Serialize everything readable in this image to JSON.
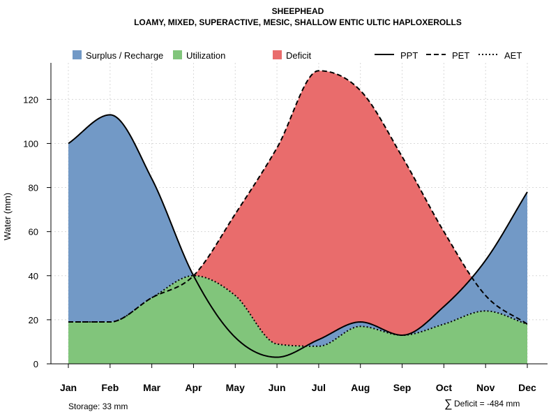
{
  "chart_data": {
    "type": "area",
    "title": "SHEEPHEAD",
    "subtitle": "LOAMY, MIXED, SUPERACTIVE, MESIC, SHALLOW ENTIC ULTIC HAPLOXEROLLS",
    "ylabel": "Water (mm)",
    "xlabel": "",
    "ylim": [
      0,
      135
    ],
    "yticks": [
      0,
      20,
      40,
      60,
      80,
      100,
      120
    ],
    "grid": true,
    "categories": [
      "Jan",
      "Feb",
      "Mar",
      "Apr",
      "May",
      "Jun",
      "Jul",
      "Aug",
      "Sep",
      "Oct",
      "Nov",
      "Dec"
    ],
    "series": [
      {
        "name": "PPT",
        "line_style": "solid",
        "values": [
          100,
          113,
          84,
          40,
          12,
          3,
          11,
          19,
          13,
          26,
          47,
          78
        ]
      },
      {
        "name": "PET",
        "line_style": "dashed",
        "values": [
          19,
          19,
          30,
          40,
          68,
          98,
          133,
          124,
          94,
          60,
          31,
          18
        ]
      },
      {
        "name": "AET",
        "line_style": "dotted",
        "values": [
          19,
          19,
          30,
          40,
          31,
          9,
          8,
          17,
          13,
          18,
          24,
          18
        ]
      }
    ],
    "legend": {
      "position": "top",
      "fills": [
        {
          "label": "Surplus / Recharge",
          "color": "#7299c6"
        },
        {
          "label": "Utilization",
          "color": "#81c57b"
        },
        {
          "label": "Deficit",
          "color": "#e96c6c"
        }
      ],
      "lines": [
        "PPT",
        "PET",
        "AET"
      ]
    },
    "annotations": {
      "storage": "Storage: 33 mm",
      "deficit_symbol": "∑",
      "deficit": "Deficit = -484 mm"
    }
  }
}
